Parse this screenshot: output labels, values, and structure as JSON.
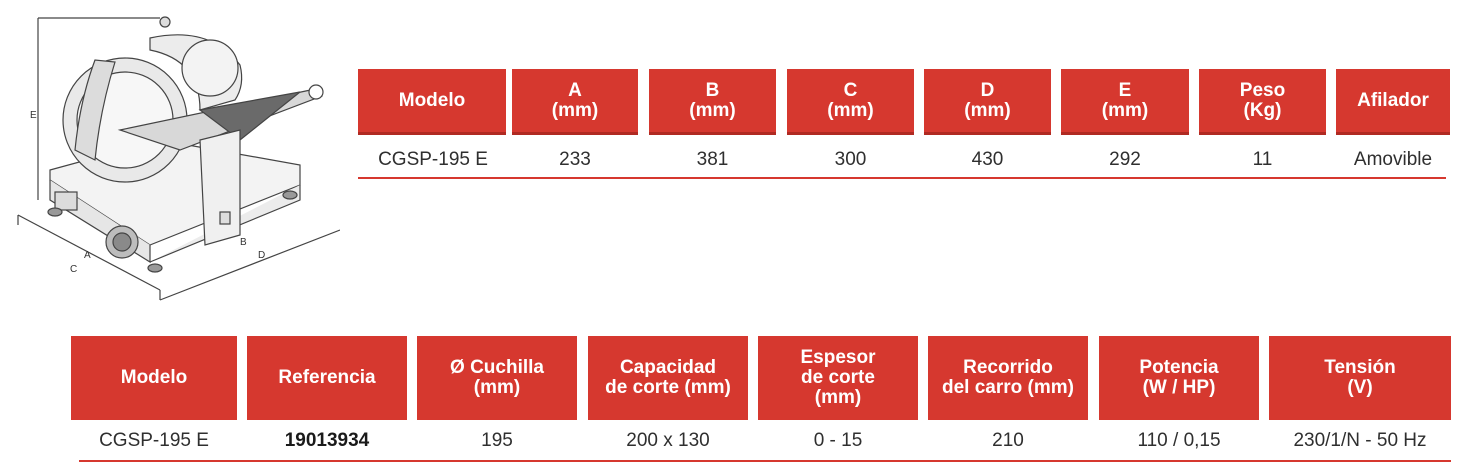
{
  "diagram": {
    "labels": {
      "a": "A",
      "b": "B",
      "c": "C",
      "d": "D",
      "e": "E"
    }
  },
  "table1": {
    "headers": [
      "Modelo",
      "A\n(mm)",
      "B\n(mm)",
      "C\n(mm)",
      "D\n(mm)",
      "E\n(mm)",
      "Peso\n(Kg)",
      "Afilador"
    ],
    "row": [
      "CGSP-195 E",
      "233",
      "381",
      "300",
      "430",
      "292",
      "11",
      "Amovible"
    ]
  },
  "table2": {
    "headers": [
      "Modelo",
      "Referencia",
      "Ø Cuchilla\n(mm)",
      "Capacidad\nde corte (mm)",
      "Espesor\nde corte\n(mm)",
      "Recorrido\ndel carro (mm)",
      "Potencia\n(W / HP)",
      "Tensión\n(V)"
    ],
    "row": [
      "CGSP-195 E",
      "19013934",
      "195",
      "200 x 130",
      "0 - 15",
      "210",
      "110 / 0,15",
      "230/1/N - 50 Hz"
    ]
  },
  "colors": {
    "accent": "#d6382f",
    "text": "#2f2f2f"
  }
}
